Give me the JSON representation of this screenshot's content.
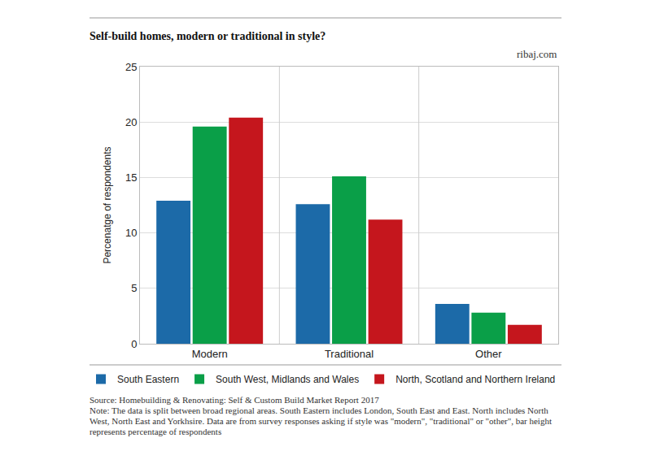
{
  "chart_data": {
    "type": "bar",
    "title": "Self-build homes, modern or traditional in style?",
    "annotations": [
      "ribaj.com"
    ],
    "y_label": "Percenatge of respondents",
    "categories": [
      "Modern",
      "Traditional",
      "Other"
    ],
    "series": [
      {
        "name": "South Eastern",
        "color": "#1c6aa8",
        "values": [
          12.9,
          12.6,
          3.6
        ]
      },
      {
        "name": "South West, Midlands and Wales",
        "color": "#0a9f48",
        "values": [
          19.6,
          15.1,
          2.8
        ]
      },
      {
        "name": "North, Scotland and Northern Ireland",
        "color": "#c5161d",
        "values": [
          20.4,
          11.2,
          1.7
        ]
      }
    ],
    "ylim": [
      0,
      25
    ],
    "yticks": [
      0,
      5,
      10,
      15,
      20,
      25
    ],
    "grid": true,
    "legend": "bottom",
    "data_labels": false,
    "source": "Source: Homebuilding & Renovating: Self & Custom Build Market Report 2017",
    "note": "Note: The data is split between broad regional areas. South Eastern includes London, South East and East.  North includes North West, North East and Yorkhsire. Data are from survey responses asking if style was \"modern\", \"traditional\" or \"other\", bar height represents percentage of respondents"
  }
}
